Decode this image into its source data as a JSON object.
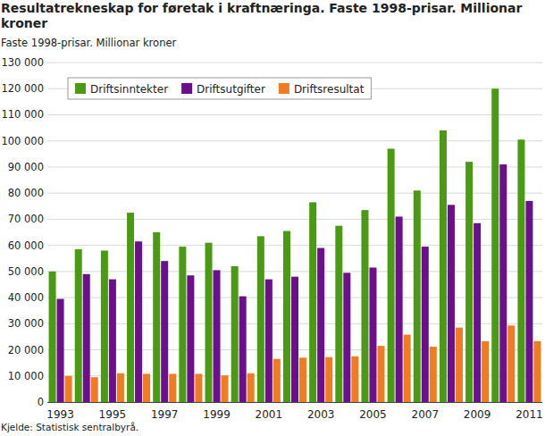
{
  "chart_data": {
    "type": "bar",
    "title": "Resultatrekneskap for føretak i kraftnæringa. Faste 1998-prisar. Millionar kroner",
    "subtitle": "Faste 1998-prisar. Millionar kroner",
    "source": "Kjelde: Statistisk sentralbyrå.",
    "categories": [
      "1993",
      null,
      "1995",
      null,
      "1997",
      null,
      "1999",
      null,
      "2001",
      null,
      "2003",
      null,
      "2005",
      null,
      "2007",
      null,
      "2009",
      null,
      "2011"
    ],
    "series": [
      {
        "name": "Driftsinntekter",
        "color": "#4b9a14",
        "values": [
          50000,
          58500,
          58000,
          72500,
          65000,
          59500,
          61000,
          52000,
          63500,
          65500,
          76500,
          67500,
          73500,
          97000,
          81000,
          104000,
          92000,
          120000,
          100500
        ]
      },
      {
        "name": "Driftsutgifter",
        "color": "#6b0f8c",
        "values": [
          39500,
          49000,
          47000,
          61500,
          54000,
          48500,
          50500,
          40500,
          47000,
          48000,
          59000,
          49500,
          51500,
          71000,
          59500,
          75500,
          68500,
          91000,
          77000
        ]
      },
      {
        "name": "Driftsresultat",
        "color": "#f07b20",
        "values": [
          10000,
          9500,
          11000,
          10800,
          10800,
          10800,
          10200,
          11000,
          16500,
          17000,
          17200,
          17500,
          21500,
          25800,
          21200,
          28500,
          23300,
          29300,
          23300
        ]
      }
    ],
    "ylim": [
      0,
      130000
    ],
    "yticks": [
      0,
      {
        "value": 10000,
        "label": "10 000"
      },
      {
        "value": 20000,
        "label": "20 000"
      },
      {
        "value": 30000,
        "label": "30 000"
      },
      {
        "value": 40000,
        "label": "40 000"
      },
      {
        "value": 50000,
        "label": "50 000"
      },
      {
        "value": 60000,
        "label": "60 000"
      },
      {
        "value": 70000,
        "label": "70 000"
      },
      {
        "value": 80000,
        "label": "80 000"
      },
      {
        "value": 90000,
        "label": "90 000"
      },
      {
        "value": 100000,
        "label": "100 000"
      },
      {
        "value": 110000,
        "label": "110 000"
      },
      {
        "value": 120000,
        "label": "120 000"
      },
      {
        "value": 130000,
        "label": "130 000"
      }
    ],
    "grid": true,
    "legend": "top-left"
  }
}
